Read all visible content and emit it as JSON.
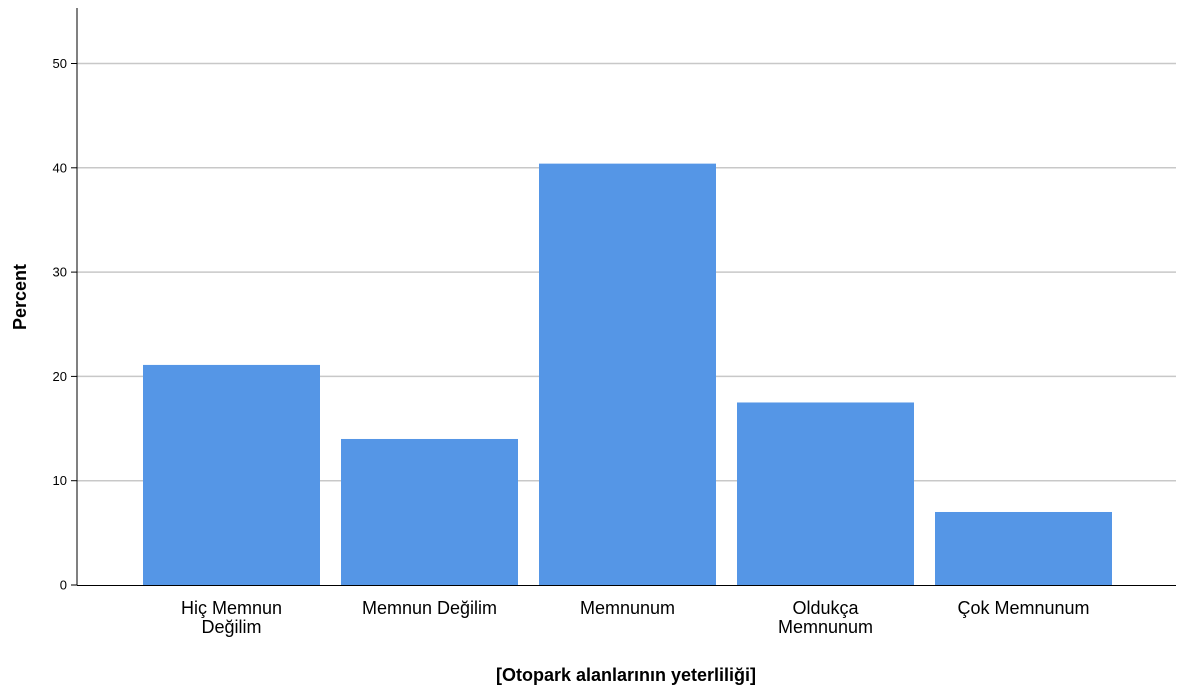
{
  "chart_data": {
    "type": "bar",
    "title": "",
    "xlabel": "[Otopark alanlarının yeterliliği]",
    "ylabel": "Percent",
    "categories": [
      [
        "Hiç Memnun",
        "Değilim"
      ],
      [
        "Memnun Değilim"
      ],
      [
        "Memnunum"
      ],
      [
        "Oldukça",
        "Memnunum"
      ],
      [
        "Çok Memnunum"
      ]
    ],
    "values": [
      21.1,
      14.0,
      40.4,
      17.5,
      7.0
    ],
    "yticks": [
      "0",
      "10",
      "20",
      "30",
      "40",
      "50"
    ],
    "ylim": [
      0,
      55
    ],
    "grid": "horizontal",
    "legend": "none",
    "bar_color": "#5596e6",
    "grid_color": "#c8c8c8",
    "axis_color": "#000000"
  }
}
